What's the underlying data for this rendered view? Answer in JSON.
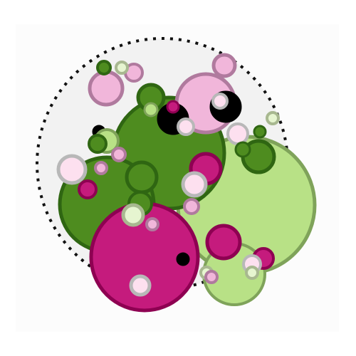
{
  "palette": {
    "dark_green_fill": "#4e8c1f",
    "dark_green_stroke": "#2f6612",
    "light_green_fill": "#b8e186",
    "light_green_stroke": "#7fa35a",
    "magenta_fill": "#c51b7d",
    "magenta_stroke": "#8e0152",
    "pink_fill": "#f1b6da",
    "pink_stroke": "#b07a9e",
    "pale_pink_fill": "#fde0ef",
    "pale_pink_stroke": "#b8b8b8",
    "pale_green_fill": "#e6f5d0",
    "pale_green_stroke": "#a8b890",
    "black": "#000000",
    "panel_background": "#fcfcfc",
    "outer_boundary_fill": "#f2f2f2"
  },
  "legend": null
}
